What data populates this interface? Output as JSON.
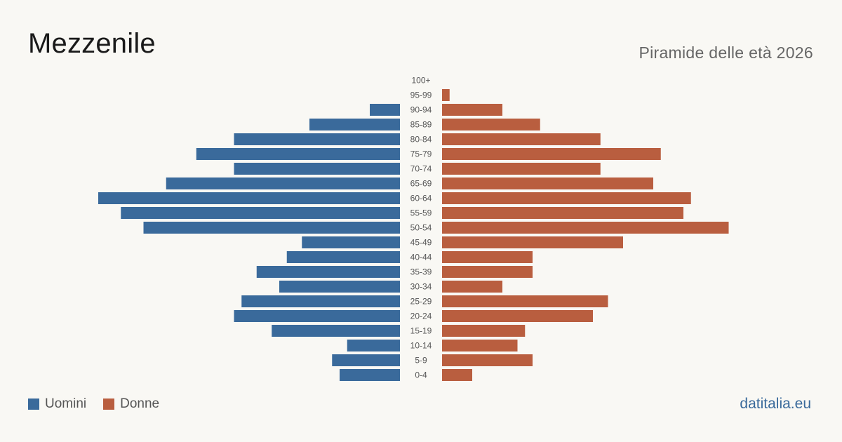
{
  "title": "Mezzenile",
  "subtitle": "Piramide delle età 2026",
  "legend": {
    "men_label": "Uomini",
    "women_label": "Donne"
  },
  "source": "datitalia.eu",
  "colors": {
    "men": "#3a6a9b",
    "women": "#b95e3f",
    "label": "#555555",
    "source": "#3a6a9b"
  },
  "chart_data": {
    "type": "bar",
    "orientation": "horizontal-pyramid",
    "categories": [
      "100+",
      "95-99",
      "90-94",
      "85-89",
      "80-84",
      "75-79",
      "70-74",
      "65-69",
      "60-64",
      "55-59",
      "50-54",
      "45-49",
      "40-44",
      "35-39",
      "30-34",
      "25-29",
      "20-24",
      "15-19",
      "10-14",
      "5-9",
      "0-4"
    ],
    "series": [
      {
        "name": "Uomini",
        "values": [
          0,
          0,
          4,
          12,
          22,
          27,
          22,
          31,
          40,
          37,
          34,
          13,
          15,
          19,
          16,
          21,
          22,
          17,
          7,
          9,
          8
        ]
      },
      {
        "name": "Donne",
        "values": [
          0,
          1,
          8,
          13,
          21,
          29,
          21,
          28,
          33,
          32,
          38,
          24,
          12,
          12,
          8,
          22,
          20,
          11,
          10,
          12,
          4
        ]
      }
    ]
  }
}
